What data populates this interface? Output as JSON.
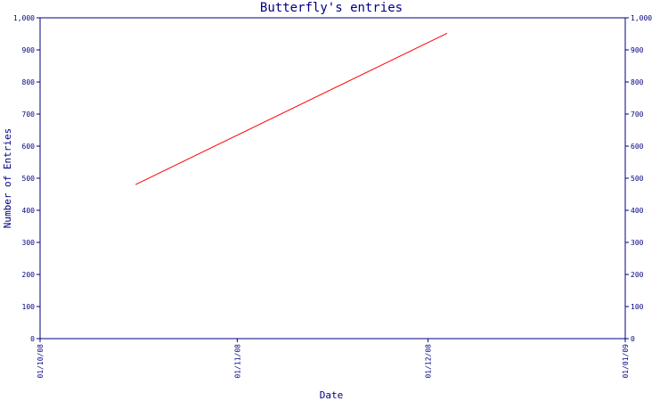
{
  "chart_data": {
    "type": "line",
    "title": "Butterfly's entries",
    "xlabel": "Date",
    "ylabel": "Number of Entries",
    "x_ticks": [
      "01/10/08",
      "01/11/08",
      "01/12/08",
      "01/01/09"
    ],
    "x_range": [
      "2008-10-01",
      "2009-01-01"
    ],
    "ylim": [
      0,
      1000
    ],
    "y_ticks": [
      0,
      100,
      200,
      300,
      400,
      500,
      600,
      700,
      800,
      900,
      1000
    ],
    "y_tick_labels": [
      "0",
      "100",
      "200",
      "300",
      "400",
      "500",
      "600",
      "700",
      "800",
      "900",
      "1,000"
    ],
    "grid": false,
    "series": [
      {
        "color": "#ff0000",
        "x": [
          "2008-10-16",
          "2008-12-04"
        ],
        "y": [
          480,
          952
        ]
      }
    ],
    "colors": {
      "axis": "#000080",
      "line": "#ff0000"
    }
  }
}
